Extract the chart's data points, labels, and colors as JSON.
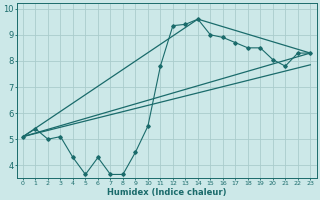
{
  "xlabel": "Humidex (Indice chaleur)",
  "background_color": "#cce8e8",
  "grid_color": "#aacccc",
  "line_color": "#1a6b6b",
  "xlim": [
    -0.5,
    23.5
  ],
  "ylim": [
    3.5,
    10.2
  ],
  "xticks": [
    0,
    1,
    2,
    3,
    4,
    5,
    6,
    7,
    8,
    9,
    10,
    11,
    12,
    13,
    14,
    15,
    16,
    17,
    18,
    19,
    20,
    21,
    22,
    23
  ],
  "yticks": [
    4,
    5,
    6,
    7,
    8,
    9,
    10
  ],
  "series1_x": [
    0,
    1,
    2,
    3,
    4,
    5,
    6,
    7,
    8,
    9,
    10,
    11,
    12,
    13,
    14,
    15,
    16,
    17,
    18,
    19,
    20,
    21,
    22,
    23
  ],
  "series1_y": [
    5.1,
    5.4,
    5.0,
    5.1,
    4.3,
    3.65,
    4.3,
    3.65,
    3.65,
    4.5,
    5.5,
    7.8,
    9.35,
    9.4,
    9.6,
    9.0,
    8.9,
    8.7,
    8.5,
    8.5,
    8.05,
    7.8,
    8.3,
    8.3
  ],
  "series2_x": [
    0,
    14,
    23
  ],
  "series2_y": [
    5.1,
    9.6,
    8.3
  ],
  "series3_x": [
    0,
    23
  ],
  "series3_y": [
    5.1,
    8.3
  ],
  "series4_x": [
    0,
    23
  ],
  "series4_y": [
    5.1,
    7.85
  ]
}
